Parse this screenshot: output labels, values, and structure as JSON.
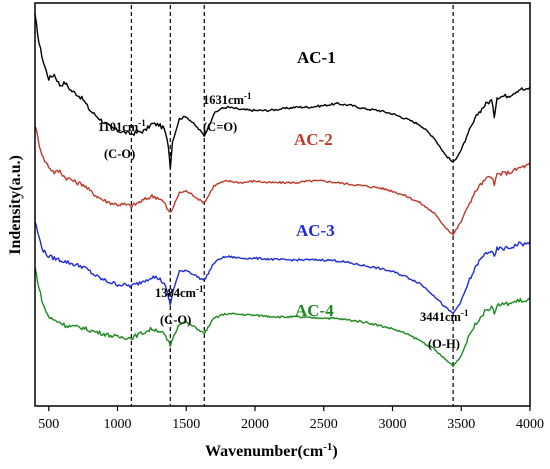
{
  "chart_data": {
    "type": "line",
    "xlabel": "Wavenumber(cm",
    "xlabel_sup": "-1",
    "xlabel_end": ")",
    "ylabel": "Indensity(a.u.)",
    "xlim": [
      400,
      4000
    ],
    "x_ticks": [
      500,
      1000,
      1500,
      2000,
      2500,
      3000,
      3500,
      4000
    ],
    "y_ticks_shown": false,
    "grid": false,
    "vlines": [
      1101,
      1384,
      1631,
      3441
    ],
    "series": [
      {
        "name": "AC-1",
        "color": "#000000",
        "offset": 3,
        "points": [
          [
            400,
            3.75
          ],
          [
            430,
            3.42
          ],
          [
            460,
            3.2
          ],
          [
            500,
            3.0
          ],
          [
            540,
            3.05
          ],
          [
            580,
            2.92
          ],
          [
            620,
            2.95
          ],
          [
            660,
            2.86
          ],
          [
            700,
            2.82
          ],
          [
            750,
            2.75
          ],
          [
            800,
            2.62
          ],
          [
            850,
            2.55
          ],
          [
            900,
            2.48
          ],
          [
            950,
            2.42
          ],
          [
            1000,
            2.38
          ],
          [
            1050,
            2.36
          ],
          [
            1101,
            2.34
          ],
          [
            1150,
            2.36
          ],
          [
            1200,
            2.38
          ],
          [
            1250,
            2.46
          ],
          [
            1300,
            2.45
          ],
          [
            1340,
            2.4
          ],
          [
            1370,
            2.2
          ],
          [
            1384,
            1.95
          ],
          [
            1400,
            2.25
          ],
          [
            1450,
            2.52
          ],
          [
            1500,
            2.55
          ],
          [
            1560,
            2.45
          ],
          [
            1600,
            2.38
          ],
          [
            1631,
            2.32
          ],
          [
            1660,
            2.42
          ],
          [
            1700,
            2.58
          ],
          [
            1750,
            2.64
          ],
          [
            1800,
            2.66
          ],
          [
            1900,
            2.63
          ],
          [
            2000,
            2.62
          ],
          [
            2100,
            2.62
          ],
          [
            2200,
            2.64
          ],
          [
            2300,
            2.66
          ],
          [
            2400,
            2.66
          ],
          [
            2500,
            2.68
          ],
          [
            2600,
            2.7
          ],
          [
            2700,
            2.68
          ],
          [
            2800,
            2.64
          ],
          [
            2900,
            2.62
          ],
          [
            3000,
            2.58
          ],
          [
            3100,
            2.52
          ],
          [
            3200,
            2.45
          ],
          [
            3300,
            2.3
          ],
          [
            3380,
            2.1
          ],
          [
            3441,
            2.0
          ],
          [
            3500,
            2.15
          ],
          [
            3560,
            2.38
          ],
          [
            3620,
            2.58
          ],
          [
            3680,
            2.7
          ],
          [
            3720,
            2.74
          ],
          [
            3740,
            2.55
          ],
          [
            3760,
            2.78
          ],
          [
            3850,
            2.8
          ],
          [
            3930,
            2.88
          ],
          [
            3970,
            2.86
          ],
          [
            4000,
            2.9
          ]
        ]
      },
      {
        "name": "AC-2",
        "color": "#c0392b",
        "offset": 2,
        "points": [
          [
            400,
            2.45
          ],
          [
            430,
            2.22
          ],
          [
            460,
            2.05
          ],
          [
            500,
            1.95
          ],
          [
            540,
            1.88
          ],
          [
            580,
            1.9
          ],
          [
            620,
            1.82
          ],
          [
            660,
            1.8
          ],
          [
            700,
            1.76
          ],
          [
            750,
            1.74
          ],
          [
            800,
            1.66
          ],
          [
            850,
            1.6
          ],
          [
            900,
            1.55
          ],
          [
            950,
            1.52
          ],
          [
            1000,
            1.5
          ],
          [
            1050,
            1.5
          ],
          [
            1101,
            1.48
          ],
          [
            1150,
            1.52
          ],
          [
            1200,
            1.56
          ],
          [
            1250,
            1.6
          ],
          [
            1300,
            1.58
          ],
          [
            1340,
            1.52
          ],
          [
            1370,
            1.42
          ],
          [
            1384,
            1.4
          ],
          [
            1400,
            1.45
          ],
          [
            1450,
            1.64
          ],
          [
            1500,
            1.66
          ],
          [
            1560,
            1.6
          ],
          [
            1600,
            1.55
          ],
          [
            1631,
            1.52
          ],
          [
            1660,
            1.6
          ],
          [
            1700,
            1.72
          ],
          [
            1750,
            1.76
          ],
          [
            1800,
            1.78
          ],
          [
            1900,
            1.76
          ],
          [
            2000,
            1.78
          ],
          [
            2100,
            1.76
          ],
          [
            2200,
            1.76
          ],
          [
            2300,
            1.76
          ],
          [
            2400,
            1.78
          ],
          [
            2500,
            1.78
          ],
          [
            2600,
            1.76
          ],
          [
            2700,
            1.74
          ],
          [
            2800,
            1.72
          ],
          [
            2900,
            1.7
          ],
          [
            3000,
            1.66
          ],
          [
            3100,
            1.6
          ],
          [
            3200,
            1.52
          ],
          [
            3300,
            1.4
          ],
          [
            3380,
            1.24
          ],
          [
            3441,
            1.14
          ],
          [
            3500,
            1.3
          ],
          [
            3560,
            1.52
          ],
          [
            3620,
            1.7
          ],
          [
            3680,
            1.8
          ],
          [
            3720,
            1.84
          ],
          [
            3740,
            1.72
          ],
          [
            3760,
            1.86
          ],
          [
            3850,
            1.88
          ],
          [
            3930,
            1.94
          ],
          [
            3970,
            1.96
          ],
          [
            4000,
            1.98
          ]
        ]
      },
      {
        "name": "AC-3",
        "color": "#1f2bd6",
        "offset": 1,
        "points": [
          [
            400,
            1.3
          ],
          [
            430,
            1.1
          ],
          [
            460,
            0.95
          ],
          [
            500,
            0.88
          ],
          [
            540,
            0.86
          ],
          [
            580,
            0.84
          ],
          [
            620,
            0.82
          ],
          [
            660,
            0.8
          ],
          [
            700,
            0.78
          ],
          [
            750,
            0.76
          ],
          [
            800,
            0.7
          ],
          [
            850,
            0.64
          ],
          [
            900,
            0.6
          ],
          [
            950,
            0.57
          ],
          [
            1000,
            0.55
          ],
          [
            1050,
            0.54
          ],
          [
            1101,
            0.53
          ],
          [
            1150,
            0.56
          ],
          [
            1200,
            0.6
          ],
          [
            1250,
            0.64
          ],
          [
            1300,
            0.62
          ],
          [
            1340,
            0.56
          ],
          [
            1370,
            0.4
          ],
          [
            1384,
            0.3
          ],
          [
            1400,
            0.45
          ],
          [
            1450,
            0.7
          ],
          [
            1500,
            0.72
          ],
          [
            1560,
            0.66
          ],
          [
            1600,
            0.62
          ],
          [
            1631,
            0.6
          ],
          [
            1660,
            0.68
          ],
          [
            1700,
            0.8
          ],
          [
            1750,
            0.86
          ],
          [
            1800,
            0.88
          ],
          [
            1900,
            0.86
          ],
          [
            2000,
            0.86
          ],
          [
            2100,
            0.85
          ],
          [
            2200,
            0.84
          ],
          [
            2300,
            0.84
          ],
          [
            2400,
            0.84
          ],
          [
            2500,
            0.84
          ],
          [
            2600,
            0.83
          ],
          [
            2700,
            0.8
          ],
          [
            2800,
            0.77
          ],
          [
            2900,
            0.74
          ],
          [
            3000,
            0.7
          ],
          [
            3100,
            0.64
          ],
          [
            3200,
            0.56
          ],
          [
            3300,
            0.42
          ],
          [
            3380,
            0.28
          ],
          [
            3441,
            0.2
          ],
          [
            3500,
            0.35
          ],
          [
            3560,
            0.6
          ],
          [
            3620,
            0.8
          ],
          [
            3680,
            0.92
          ],
          [
            3720,
            0.95
          ],
          [
            3740,
            0.86
          ],
          [
            3760,
            0.97
          ],
          [
            3850,
            0.98
          ],
          [
            3930,
            1.04
          ],
          [
            3970,
            1.02
          ],
          [
            4000,
            1.06
          ]
        ]
      },
      {
        "name": "AC-4",
        "color": "#1e8a1e",
        "offset": 0,
        "points": [
          [
            400,
            0.75
          ],
          [
            430,
            0.5
          ],
          [
            460,
            0.3
          ],
          [
            500,
            0.16
          ],
          [
            540,
            0.12
          ],
          [
            580,
            0.1
          ],
          [
            620,
            0.06
          ],
          [
            660,
            0.05
          ],
          [
            700,
            0.04
          ],
          [
            750,
            0.03
          ],
          [
            800,
            0.0
          ],
          [
            850,
            -0.02
          ],
          [
            900,
            -0.04
          ],
          [
            950,
            -0.06
          ],
          [
            1000,
            -0.08
          ],
          [
            1050,
            -0.08
          ],
          [
            1101,
            -0.09
          ],
          [
            1150,
            -0.05
          ],
          [
            1200,
            -0.02
          ],
          [
            1250,
            0.02
          ],
          [
            1300,
            0.0
          ],
          [
            1340,
            -0.05
          ],
          [
            1370,
            -0.14
          ],
          [
            1384,
            -0.18
          ],
          [
            1400,
            -0.1
          ],
          [
            1450,
            0.08
          ],
          [
            1500,
            0.1
          ],
          [
            1560,
            0.04
          ],
          [
            1600,
            0.0
          ],
          [
            1631,
            -0.04
          ],
          [
            1660,
            0.04
          ],
          [
            1700,
            0.14
          ],
          [
            1750,
            0.18
          ],
          [
            1800,
            0.2
          ],
          [
            1900,
            0.19
          ],
          [
            2000,
            0.18
          ],
          [
            2100,
            0.17
          ],
          [
            2200,
            0.16
          ],
          [
            2300,
            0.16
          ],
          [
            2400,
            0.15
          ],
          [
            2500,
            0.15
          ],
          [
            2600,
            0.14
          ],
          [
            2700,
            0.12
          ],
          [
            2800,
            0.1
          ],
          [
            2900,
            0.06
          ],
          [
            3000,
            0.02
          ],
          [
            3100,
            -0.04
          ],
          [
            3200,
            -0.12
          ],
          [
            3300,
            -0.22
          ],
          [
            3380,
            -0.34
          ],
          [
            3441,
            -0.42
          ],
          [
            3500,
            -0.3
          ],
          [
            3560,
            -0.05
          ],
          [
            3620,
            0.12
          ],
          [
            3680,
            0.24
          ],
          [
            3720,
            0.28
          ],
          [
            3740,
            0.2
          ],
          [
            3760,
            0.3
          ],
          [
            3850,
            0.32
          ],
          [
            3930,
            0.36
          ],
          [
            3970,
            0.34
          ],
          [
            4000,
            0.38
          ]
        ]
      }
    ],
    "annotations": [
      {
        "id": "ann-1101",
        "line1": "1101cm",
        "sup": "-1",
        "line2": "(C-O)"
      },
      {
        "id": "ann-1631",
        "line1": "1631cm",
        "sup": "-1",
        "line2": "(C=O)"
      },
      {
        "id": "ann-1384",
        "line1": "1384cm",
        "sup": "-1",
        "line2": "(C-O)"
      },
      {
        "id": "ann-3441",
        "line1": "3441cm",
        "sup": "-1",
        "line2": "(O-H)"
      }
    ]
  }
}
